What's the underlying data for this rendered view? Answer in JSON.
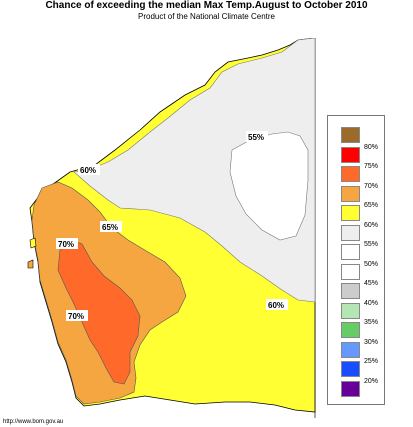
{
  "header": {
    "title": "Chance of exceeding the median Max Temp.August to October 2010",
    "subtitle": "Product of the National Climate Centre"
  },
  "map": {
    "region": "Western Australia",
    "labels": {
      "l60_north": "60%",
      "l55": "55%",
      "l65": "65%",
      "l70_upper": "70%",
      "l70_lower": "70%",
      "l60_east": "60%"
    }
  },
  "legend": {
    "items": [
      {
        "label": "80%",
        "color": "#9c6b2b"
      },
      {
        "label": "75%",
        "color": "#ff0000"
      },
      {
        "label": "70%",
        "color": "#ff6a2a"
      },
      {
        "label": "65%",
        "color": "#f5a640"
      },
      {
        "label": "60%",
        "color": "#ffff33"
      },
      {
        "label": "55%",
        "color": "#eeeeee"
      },
      {
        "label": "50%",
        "color": "#ffffff"
      },
      {
        "label": "45%",
        "color": "#ffffff"
      },
      {
        "label": "40%",
        "color": "#cccccc"
      },
      {
        "label": "35%",
        "color": "#b3e6b3"
      },
      {
        "label": "30%",
        "color": "#66cc66"
      },
      {
        "label": "25%",
        "color": "#6699ff"
      },
      {
        "label": "20%",
        "color": "#1a4dff"
      },
      {
        "label": "",
        "color": "#660099"
      }
    ]
  },
  "footer": {
    "url": "http://www.bom.gov.au"
  }
}
